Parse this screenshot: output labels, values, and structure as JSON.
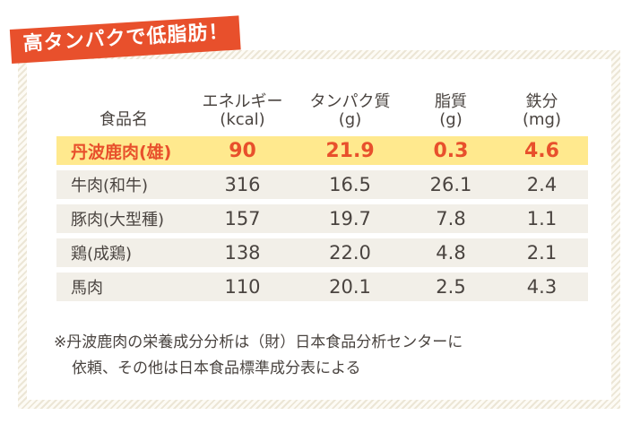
{
  "badge": "高タンパクで低脂肪！",
  "headers": {
    "food": "食品名",
    "energy_1": "エネルギー",
    "energy_2": "(kcal)",
    "protein_1": "タンパク質",
    "protein_2": "(g)",
    "fat_1": "脂質",
    "fat_2": "(g)",
    "iron_1": "鉄分",
    "iron_2": "(mg)"
  },
  "rows": [
    {
      "name": "丹波鹿肉(雄)",
      "energy": "90",
      "protein": "21.9",
      "fat": "0.3",
      "iron": "4.6"
    },
    {
      "name": "牛肉(和牛)",
      "energy": "316",
      "protein": "16.5",
      "fat": "26.1",
      "iron": "2.4"
    },
    {
      "name": "豚肉(大型種)",
      "energy": "157",
      "protein": "19.7",
      "fat": "7.8",
      "iron": "1.1"
    },
    {
      "name": "鶏(成鶏)",
      "energy": "138",
      "protein": "22.0",
      "fat": "4.8",
      "iron": "2.1"
    },
    {
      "name": "馬肉",
      "energy": "110",
      "protein": "20.1",
      "fat": "2.5",
      "iron": "4.3"
    }
  ],
  "note_line1": "※丹波鹿肉の栄養成分分析は（財）日本食品分析センターに",
  "note_line2": "依頼、その他は日本食品標準成分表による",
  "colors": {
    "accent": "#e8502c",
    "highlight": "#ffe98e",
    "row": "#f2efe8"
  }
}
